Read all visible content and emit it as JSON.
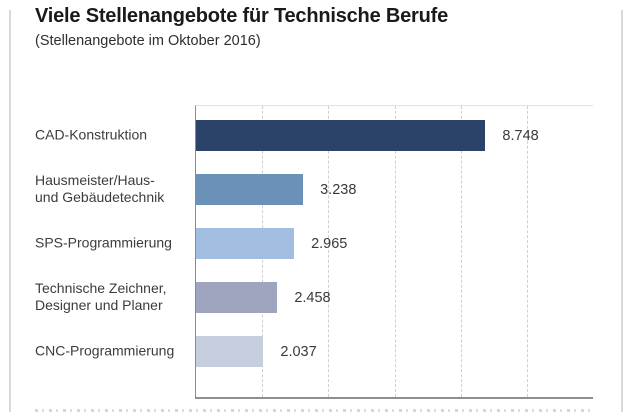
{
  "header": {
    "title": "Viele Stellenangebote für Technische Berufe",
    "subtitle": "(Stellenangebote im Oktober 2016)"
  },
  "chart_data": {
    "type": "bar",
    "orientation": "horizontal",
    "title": "Viele Stellenangebote für Technische Berufe",
    "subtitle": "(Stellenangebote im Oktober 2016)",
    "categories": [
      "CAD-Konstruktion",
      "Hausmeister/Haus-\nund Gebäudetechnik",
      "SPS-Programmierung",
      "Technische Zeichner,\nDesigner und Planer",
      "CNC-Programmierung"
    ],
    "values": [
      8748,
      3238,
      2965,
      2458,
      2037
    ],
    "value_labels": [
      "8.748",
      "3.238",
      "2.965",
      "2.458",
      "2.037"
    ],
    "bar_colors": [
      "#2b4368",
      "#6b91b8",
      "#a1bee1",
      "#9fa5bf",
      "#c6cddd"
    ],
    "xlabel": "",
    "ylabel": "",
    "xlim": [
      0,
      12000
    ],
    "gridline_values": [
      2000,
      4000,
      6000,
      8000,
      10000
    ],
    "grid": "vertical-dashed",
    "legend": "none",
    "colors": {
      "grid": "#cfcfcf",
      "axis": "#8a8a8a",
      "value_text": "#3a3a3a",
      "label_text": "#3c3c3c",
      "title_text": "#1a1a1a",
      "frame": "#d9d9d9"
    }
  }
}
